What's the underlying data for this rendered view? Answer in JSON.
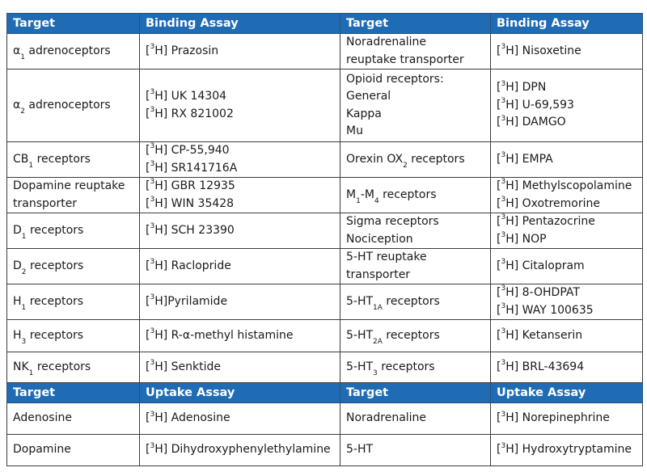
{
  "headers": {
    "binding": [
      "Target",
      "Binding Assay",
      "Target",
      "Binding Assay"
    ],
    "uptake": [
      "Target",
      "Uptake Assay",
      "Target",
      "Uptake Assay"
    ]
  },
  "binding_rows": [
    {
      "h": 44,
      "c1": [
        "α₁ adrenoceptors"
      ],
      "c2": [
        "[³H] Prazosin"
      ],
      "c3": [
        "Noradrenaline",
        "reuptake transporter"
      ],
      "c4": [
        "[³H] Nisoxetine"
      ]
    },
    {
      "h": 90,
      "c1": [
        "α₂ adrenoceptors"
      ],
      "c2": [
        "[³H] UK 14304",
        "[³H] RX 821002"
      ],
      "c3": [
        "Opioid receptors:",
        "General",
        "Kappa",
        "Mu"
      ],
      "c4": [
        "[³H] DPN",
        "[³H] U-69,593",
        "[³H] DAMGO"
      ]
    },
    {
      "h": 44,
      "c1": [
        "CB₁ receptors"
      ],
      "c2": [
        "[³H] CP-55,940",
        "[³H] SR141716A"
      ],
      "c3": [
        "Orexin OX₂ receptors"
      ],
      "c4": [
        "[³H] EMPA"
      ]
    },
    {
      "h": 44,
      "c1": [
        "Dopamine reuptake",
        "transporter"
      ],
      "c2": [
        "[³H] GBR 12935",
        "[³H] WIN 35428"
      ],
      "c3": [
        "M₁-M₄ receptors"
      ],
      "c4": [
        "[³H] Methylscopolamine",
        "[³H] Oxotremorine"
      ]
    },
    {
      "h": 44,
      "c1": [
        "D₁ receptors"
      ],
      "c2": [
        "[³H] SCH 23390"
      ],
      "c3": [
        "Sigma receptors",
        "Nociception"
      ],
      "c4": [
        "[³H] Pentazocrine",
        "[³H] NOP"
      ]
    },
    {
      "h": 44,
      "c1": [
        "D₂ receptors"
      ],
      "c2": [
        "[³H] Raclopride"
      ],
      "c3": [
        "5-HT reuptake",
        "transporter"
      ],
      "c4": [
        "[³H] Citalopram"
      ]
    },
    {
      "h": 44,
      "c1": [
        "H₁ receptors"
      ],
      "c2": [
        "[³H]Pyrilamide"
      ],
      "c3": [
        "5-HT₁A receptors"
      ],
      "c4": [
        "[³H] 8-OHDPAT",
        "[³H] WAY 100635"
      ]
    },
    {
      "h": 40,
      "c1": [
        "H₃ receptors"
      ],
      "c2": [
        "[³H] R-α-methyl histamine"
      ],
      "c3": [
        "5-HT₂A receptors"
      ],
      "c4": [
        "[³H] Ketanserin"
      ]
    },
    {
      "h": 38,
      "c1": [
        "NK₁ receptors"
      ],
      "c2": [
        "[³H] Senktide"
      ],
      "c3": [
        "5-HT₃ receptors"
      ],
      "c4": [
        "[³H] BRL-43694"
      ]
    }
  ],
  "uptake_rows": [
    {
      "h": 39,
      "c1": [
        "Adenosine"
      ],
      "c2": [
        "[³H] Adenosine"
      ],
      "c3": [
        "Noradrenaline"
      ],
      "c4": [
        "[³H] Norepinephrine"
      ]
    },
    {
      "h": 39,
      "c1": [
        "Dopamine"
      ],
      "c2": [
        "[³H] Dihydroxyphenylethylamine"
      ],
      "c3": [
        "5-HT"
      ],
      "c4": [
        "[³H] Hydroxytryptamine"
      ]
    }
  ]
}
